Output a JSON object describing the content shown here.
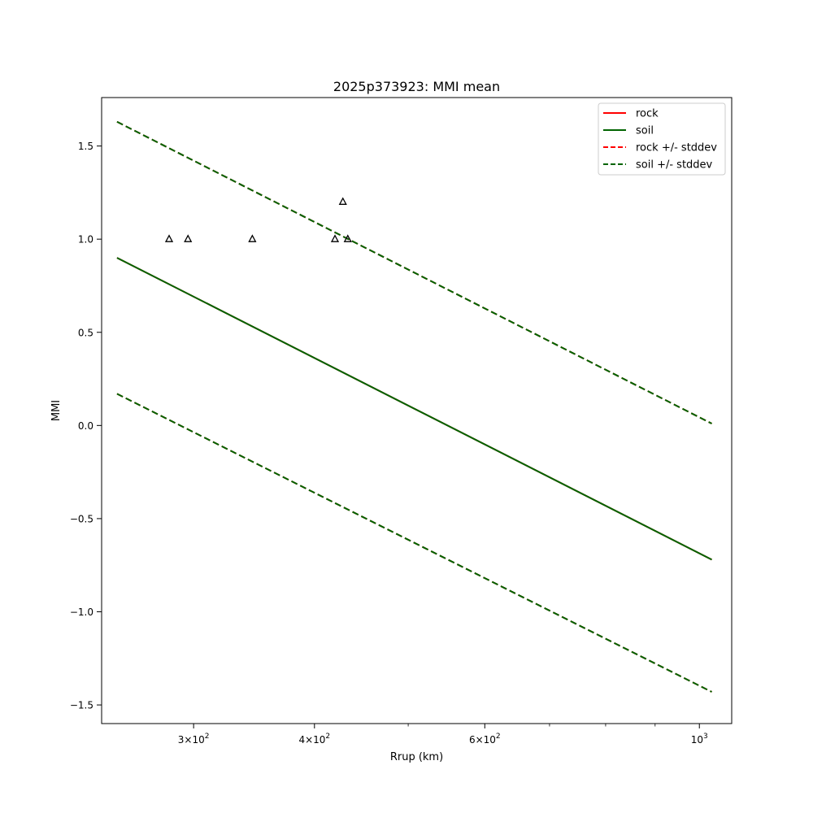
{
  "chart_data": {
    "type": "line",
    "title": "2025p373923: MMI mean",
    "xlabel": "Rrup (km)",
    "ylabel": "MMI",
    "xscale": "log",
    "xlim": [
      241,
      1080
    ],
    "ylim": [
      -1.6,
      1.76
    ],
    "x_major_ticks": [
      {
        "value": 300,
        "base": "3×10",
        "exp": "2"
      },
      {
        "value": 400,
        "base": "4×10",
        "exp": "2"
      },
      {
        "value": 600,
        "base": "6×10",
        "exp": "2"
      },
      {
        "value": 1000,
        "base": "10",
        "exp": "3"
      }
    ],
    "x_minor_ticks": [
      500,
      700,
      800,
      900
    ],
    "y_ticks": [
      {
        "value": 1.5,
        "label": "1.5"
      },
      {
        "value": 1.0,
        "label": "1.0"
      },
      {
        "value": 0.5,
        "label": "0.5"
      },
      {
        "value": 0.0,
        "label": "0.0"
      },
      {
        "value": -0.5,
        "label": "−0.5"
      },
      {
        "value": -1.0,
        "label": "−1.0"
      },
      {
        "value": -1.5,
        "label": "−1.5"
      }
    ],
    "grid": false,
    "legend_position": "top-right",
    "series": [
      {
        "name": "rock",
        "color": "#ff0000",
        "style": "solid",
        "x": [
          250,
          1030
        ],
        "y": [
          0.9,
          -0.72
        ]
      },
      {
        "name": "soil",
        "color": "#006400",
        "style": "solid",
        "x": [
          250,
          1030
        ],
        "y": [
          0.9,
          -0.72
        ]
      },
      {
        "name": "rock +/- stddev",
        "color": "#ff0000",
        "style": "dashed",
        "x": [
          250,
          1030
        ],
        "y": [
          1.63,
          0.01
        ],
        "y2": [
          0.17,
          -1.43
        ]
      },
      {
        "name": "soil +/- stddev",
        "color": "#006400",
        "style": "dashed",
        "x": [
          250,
          1030
        ],
        "y": [
          1.63,
          0.01
        ],
        "y2": [
          0.17,
          -1.43
        ]
      }
    ],
    "observations": {
      "marker": "triangle-open",
      "color": "#000000",
      "x": [
        283,
        296,
        345,
        420,
        428,
        433
      ],
      "y": [
        1.0,
        1.0,
        1.0,
        1.0,
        1.2,
        1.0
      ]
    }
  }
}
